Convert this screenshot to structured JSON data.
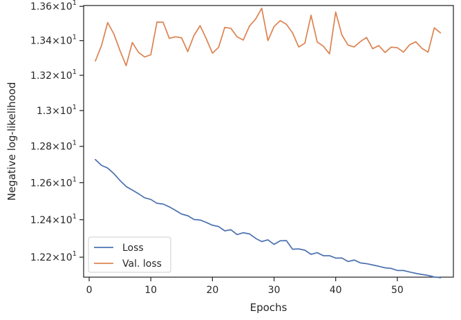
{
  "chart_data": {
    "type": "line",
    "xlabel": "Epochs",
    "ylabel": "Negative log-likelihood",
    "xlim": [
      -0.9,
      59.1
    ],
    "ylim": [
      12.095,
      13.605
    ],
    "yscale": "log",
    "x_ticks": [
      0,
      10,
      20,
      30,
      40,
      50
    ],
    "x_tick_labels": [
      "0",
      "10",
      "20",
      "30",
      "40",
      "50"
    ],
    "y_ticks": [
      12.2,
      12.4,
      12.6,
      12.8,
      13.0,
      13.2,
      13.4,
      13.6
    ],
    "y_tick_labels": [
      {
        "mantissa": "1.22",
        "base": "10",
        "exp": "1"
      },
      {
        "mantissa": "1.24",
        "base": "10",
        "exp": "1"
      },
      {
        "mantissa": "1.26",
        "base": "10",
        "exp": "1"
      },
      {
        "mantissa": "1.28",
        "base": "10",
        "exp": "1"
      },
      {
        "mantissa": "1.3",
        "base": "10",
        "exp": "1"
      },
      {
        "mantissa": "1.32",
        "base": "10",
        "exp": "1"
      },
      {
        "mantissa": "1.34",
        "base": "10",
        "exp": "1"
      },
      {
        "mantissa": "1.36",
        "base": "10",
        "exp": "1"
      }
    ],
    "grid": false,
    "legend": "lower-left",
    "x": [
      1,
      2,
      3,
      4,
      5,
      6,
      7,
      8,
      9,
      10,
      11,
      12,
      13,
      14,
      15,
      16,
      17,
      18,
      19,
      20,
      21,
      22,
      23,
      24,
      25,
      26,
      27,
      28,
      29,
      30,
      31,
      32,
      33,
      34,
      35,
      36,
      37,
      38,
      39,
      40,
      41,
      42,
      43,
      44,
      45,
      46,
      47,
      48,
      49,
      50,
      51,
      52,
      53,
      54,
      55,
      56,
      57
    ],
    "series": [
      {
        "name": "Loss",
        "color": "#4c72b0",
        "values": [
          12.727,
          12.695,
          12.68,
          12.65,
          12.612,
          12.579,
          12.56,
          12.54,
          12.518,
          12.509,
          12.488,
          12.484,
          12.469,
          12.45,
          12.43,
          12.421,
          12.401,
          12.398,
          12.385,
          12.37,
          12.363,
          12.34,
          12.346,
          12.32,
          12.33,
          12.324,
          12.3,
          12.283,
          12.292,
          12.268,
          12.287,
          12.288,
          12.242,
          12.244,
          12.237,
          12.215,
          12.224,
          12.208,
          12.208,
          12.195,
          12.196,
          12.177,
          12.185,
          12.17,
          12.166,
          12.159,
          12.152,
          12.144,
          12.141,
          12.13,
          12.13,
          12.122,
          12.115,
          12.109,
          12.104,
          12.096,
          12.092
        ]
      },
      {
        "name": "Val. loss",
        "color": "#dd8452",
        "values": [
          13.282,
          13.371,
          13.505,
          13.439,
          13.342,
          13.255,
          13.389,
          13.332,
          13.305,
          13.318,
          13.508,
          13.507,
          13.413,
          13.422,
          13.416,
          13.336,
          13.43,
          13.487,
          13.411,
          13.327,
          13.361,
          13.477,
          13.471,
          13.422,
          13.403,
          13.484,
          13.525,
          13.589,
          13.4,
          13.482,
          13.516,
          13.495,
          13.445,
          13.363,
          13.385,
          13.548,
          13.392,
          13.367,
          13.323,
          13.567,
          13.433,
          13.374,
          13.363,
          13.394,
          13.418,
          13.353,
          13.371,
          13.331,
          13.362,
          13.359,
          13.333,
          13.376,
          13.393,
          13.355,
          13.333,
          13.474,
          13.445
        ]
      }
    ]
  }
}
